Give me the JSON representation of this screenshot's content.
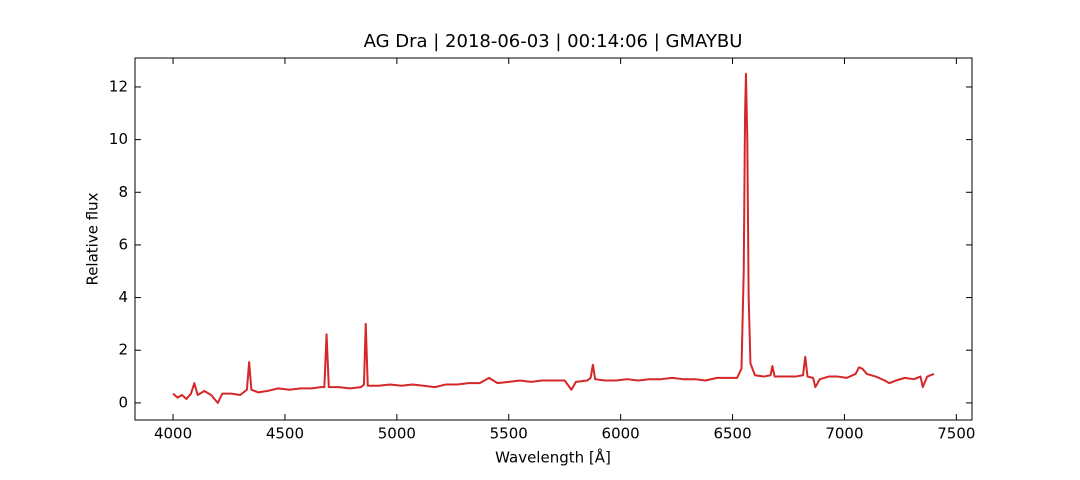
{
  "chart_data": {
    "type": "line",
    "title": "AG Dra | 2018-06-03 | 00:14:06 | GMAYBU",
    "x_label": "Wavelength [Å]",
    "y_label": "Relative flux",
    "xlim": [
      3830,
      7570
    ],
    "ylim": [
      -0.65,
      13.1
    ],
    "xticks": [
      4000,
      4500,
      5000,
      5500,
      6000,
      6500,
      7000,
      7500
    ],
    "yticks": [
      0,
      2,
      4,
      6,
      8,
      10,
      12
    ],
    "grid": false,
    "series": [
      {
        "color": "#d62728",
        "x": [
          4000,
          4020,
          4040,
          4060,
          4080,
          4095,
          4110,
          4140,
          4170,
          4200,
          4220,
          4260,
          4300,
          4330,
          4340,
          4350,
          4380,
          4420,
          4470,
          4520,
          4570,
          4620,
          4660,
          4676,
          4686,
          4696,
          4740,
          4790,
          4840,
          4853,
          4861,
          4870,
          4920,
          4970,
          5020,
          5070,
          5120,
          5170,
          5220,
          5270,
          5320,
          5370,
          5412,
          5450,
          5500,
          5550,
          5600,
          5650,
          5700,
          5750,
          5780,
          5800,
          5850,
          5866,
          5876,
          5886,
          5930,
          5980,
          6030,
          6080,
          6130,
          6180,
          6230,
          6280,
          6330,
          6380,
          6430,
          6480,
          6520,
          6540,
          6550,
          6556,
          6560,
          6566,
          6572,
          6580,
          6600,
          6640,
          6670,
          6678,
          6688,
          6730,
          6780,
          6815,
          6825,
          6835,
          6860,
          6870,
          6890,
          6930,
          6970,
          7010,
          7050,
          7065,
          7080,
          7100,
          7140,
          7180,
          7200,
          7230,
          7270,
          7310,
          7340,
          7350,
          7370,
          7400
        ],
        "values": [
          0.35,
          0.2,
          0.3,
          0.15,
          0.35,
          0.75,
          0.3,
          0.45,
          0.3,
          0.0,
          0.35,
          0.35,
          0.3,
          0.5,
          1.55,
          0.5,
          0.4,
          0.45,
          0.55,
          0.5,
          0.55,
          0.55,
          0.6,
          0.6,
          2.6,
          0.6,
          0.6,
          0.55,
          0.6,
          0.7,
          3.0,
          0.65,
          0.65,
          0.7,
          0.65,
          0.7,
          0.65,
          0.6,
          0.7,
          0.7,
          0.75,
          0.75,
          0.95,
          0.75,
          0.8,
          0.85,
          0.8,
          0.85,
          0.85,
          0.85,
          0.5,
          0.8,
          0.85,
          0.95,
          1.45,
          0.9,
          0.85,
          0.85,
          0.9,
          0.85,
          0.9,
          0.9,
          0.95,
          0.9,
          0.9,
          0.85,
          0.95,
          0.95,
          0.95,
          1.3,
          5.0,
          11.0,
          12.5,
          10.0,
          4.0,
          1.5,
          1.05,
          1.0,
          1.05,
          1.4,
          1.0,
          1.0,
          1.0,
          1.05,
          1.75,
          1.0,
          0.95,
          0.6,
          0.9,
          1.0,
          1.0,
          0.95,
          1.1,
          1.35,
          1.3,
          1.1,
          1.0,
          0.85,
          0.75,
          0.85,
          0.95,
          0.9,
          1.0,
          0.6,
          1.0,
          1.1
        ]
      }
    ]
  }
}
